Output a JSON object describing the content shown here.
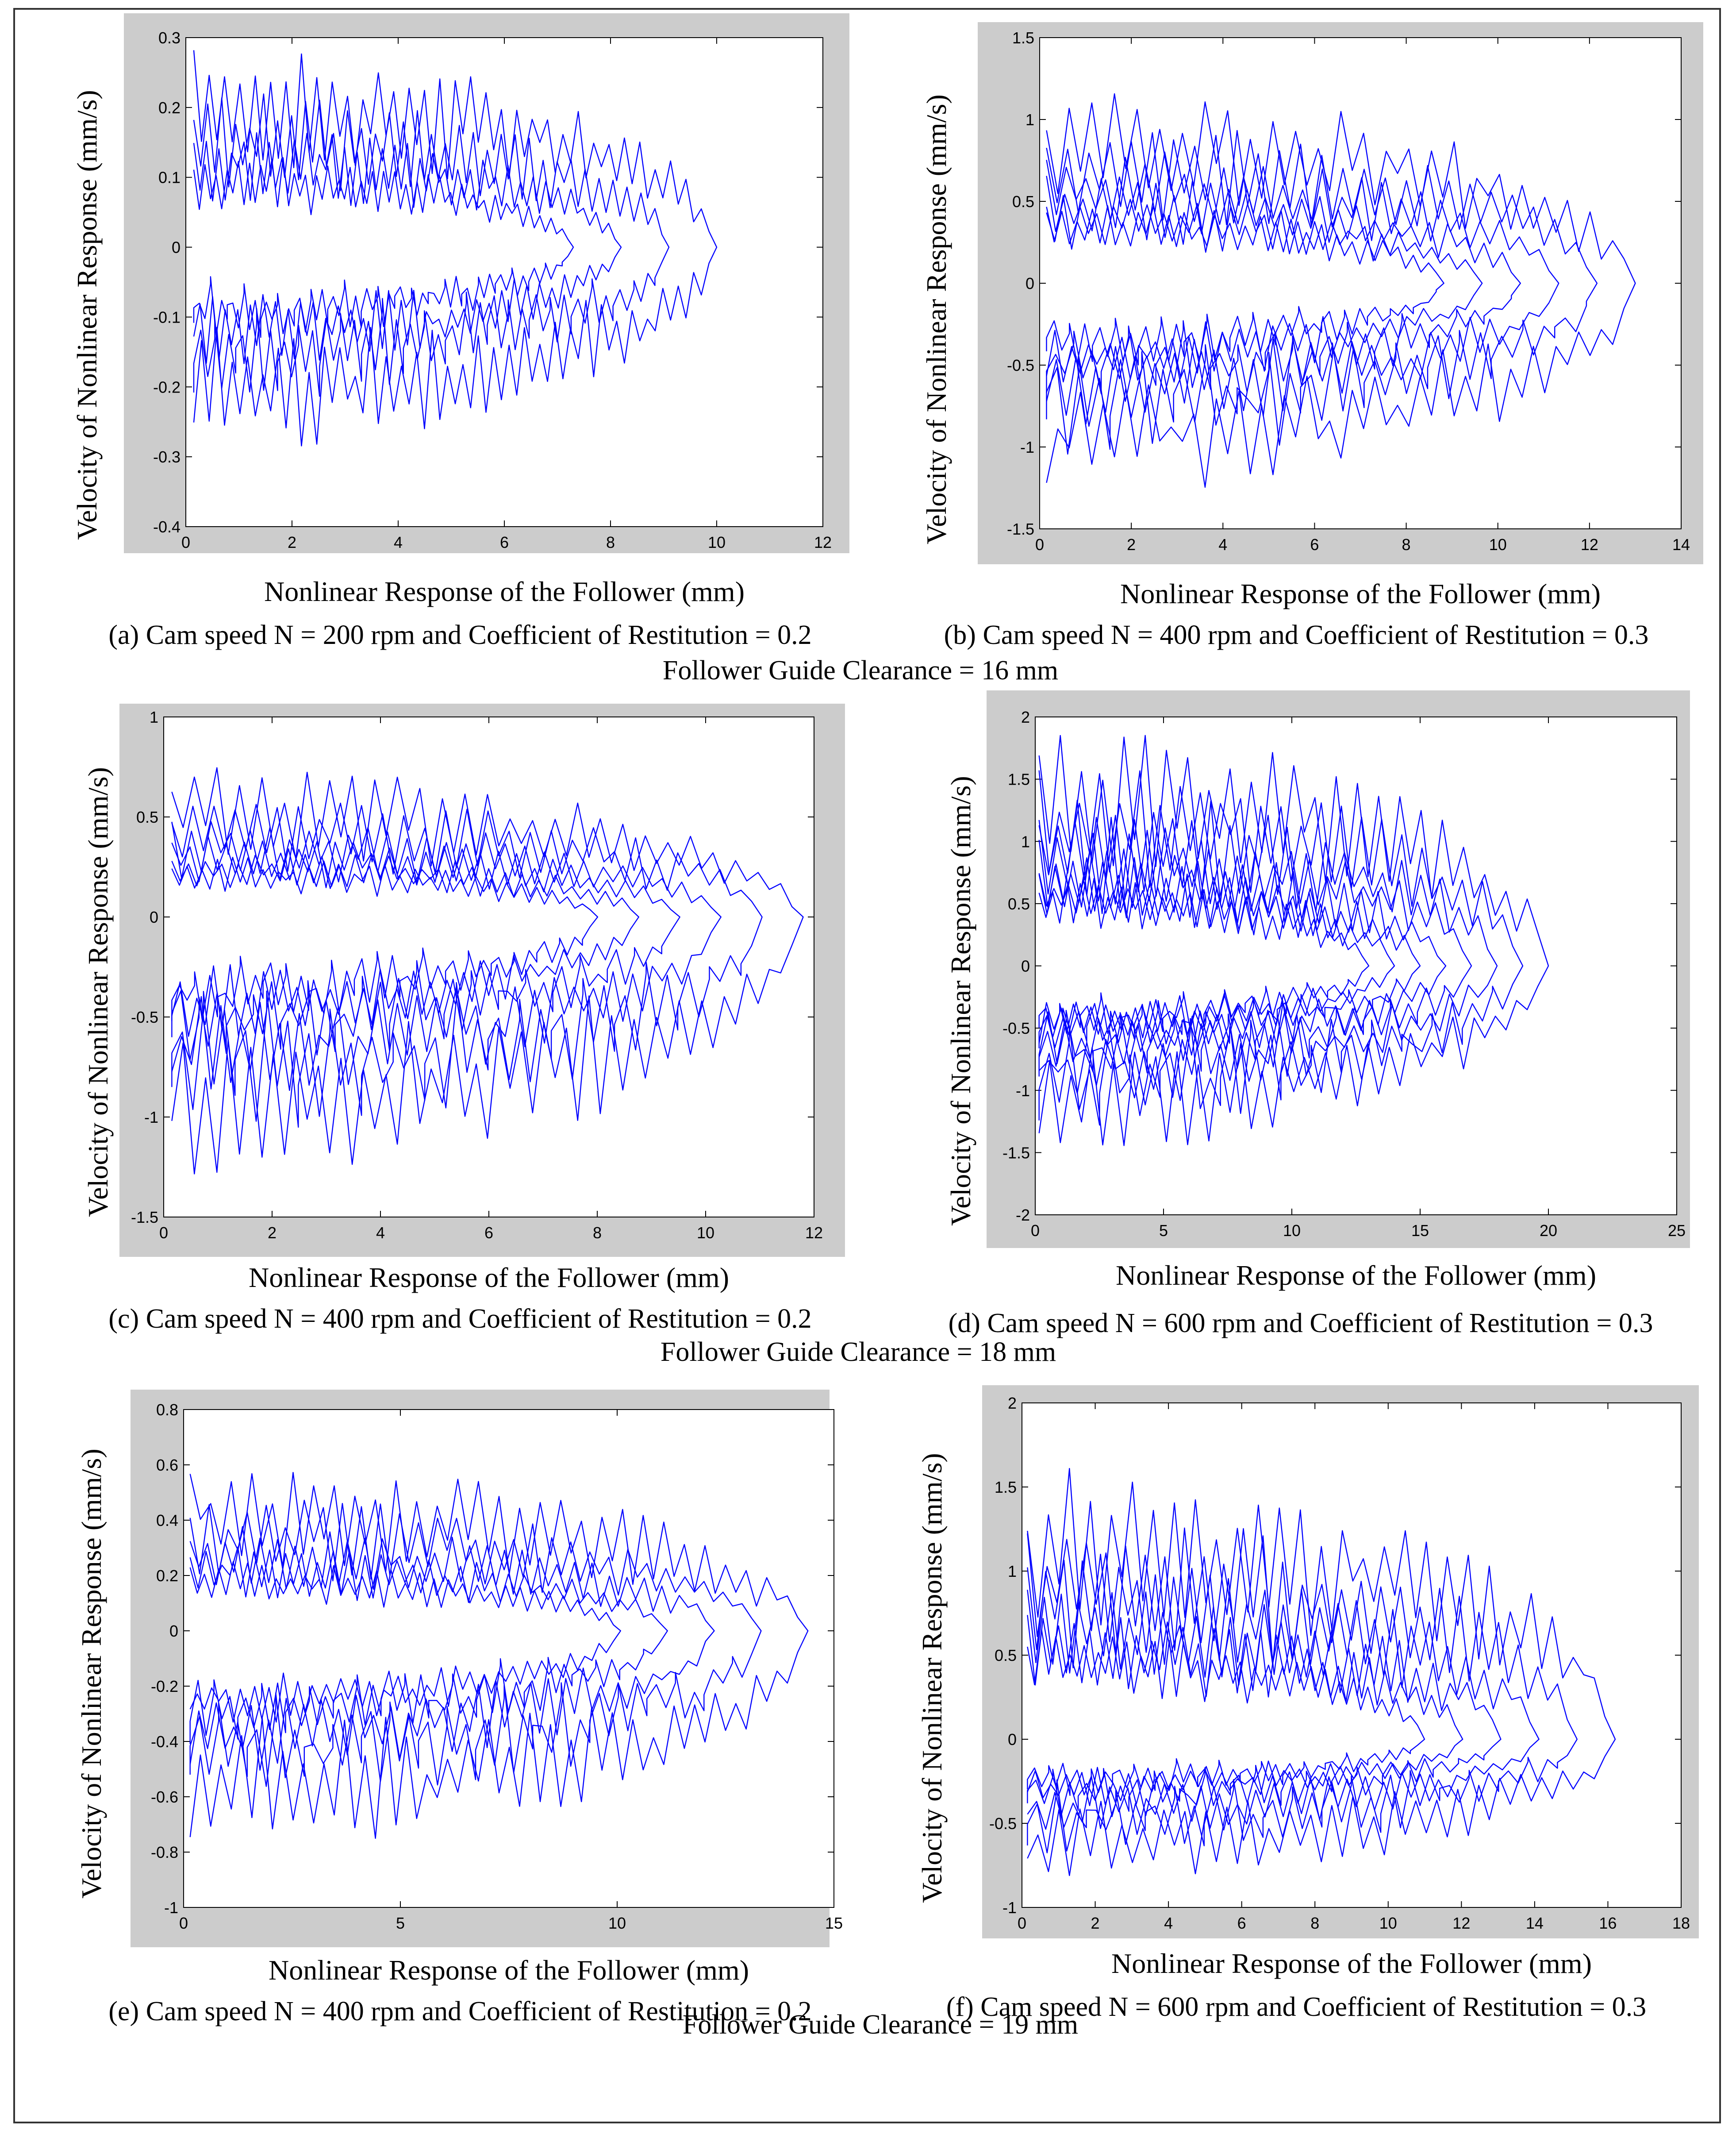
{
  "figure": {
    "clearances": [
      "Follower Guide Clearance = 16 mm",
      "Follower Guide Clearance = 18 mm",
      "Follower Guide Clearance = 19 mm"
    ]
  },
  "chart_data": [
    {
      "id": "a",
      "type": "line",
      "caption": "(a) Cam speed N = 200 rpm and Coefficient of Restitution = 0.2",
      "xlabel": "Nonlinear Response of the Follower (mm)",
      "ylabel": "Velocity of Nonlinear Response (mm/s)",
      "xlim": [
        0,
        12
      ],
      "ylim": [
        -0.4,
        0.3
      ],
      "xticks": [
        "0",
        "2",
        "4",
        "6",
        "8",
        "10",
        "12"
      ],
      "yticks": [
        "-0.4",
        "-0.3",
        "-0.2",
        "-0.1",
        "0",
        "0.1",
        "0.2",
        "0.3"
      ],
      "series": [
        {
          "name": "phase trajectory",
          "color": "#0000ff",
          "x_max": 10,
          "v_max": 0.29,
          "v_min": -0.29,
          "loops": 4,
          "ripples": 34
        }
      ]
    },
    {
      "id": "b",
      "type": "line",
      "caption": "(b) Cam speed N = 400 rpm and Coefficient of Restitution = 0.3",
      "xlabel": "Nonlinear Response of the Follower (mm)",
      "ylabel": "Velocity of Nonlinear Response (mm/s)",
      "xlim": [
        0,
        14
      ],
      "ylim": [
        -1.5,
        1.5
      ],
      "xticks": [
        "0",
        "2",
        "4",
        "6",
        "8",
        "10",
        "12",
        "14"
      ],
      "yticks": [
        "-1.5",
        "-1",
        "-0.5",
        "0",
        "0.5",
        "1",
        "1.5"
      ],
      "series": [
        {
          "name": "phase trajectory",
          "color": "#0000ff",
          "x_max": 13,
          "v_max": 1.2,
          "v_min": -1.3,
          "loops": 6,
          "ripples": 26
        }
      ]
    },
    {
      "id": "c",
      "type": "line",
      "caption": "(c) Cam speed N = 400 rpm and Coefficient of Restitution = 0.2",
      "xlabel": "Nonlinear Response of the Follower (mm)",
      "ylabel": "Velocity of Nonlinear Response (mm/s)",
      "xlim": [
        0,
        12
      ],
      "ylim": [
        -1.5,
        1
      ],
      "xticks": [
        "0",
        "2",
        "4",
        "6",
        "8",
        "10",
        "12"
      ],
      "yticks": [
        "-1.5",
        "-1",
        "-0.5",
        "0",
        "0.5",
        "1"
      ],
      "series": [
        {
          "name": "phase trajectory",
          "color": "#0000ff",
          "x_max": 11.8,
          "v_max": 0.75,
          "v_min": -1.3,
          "loops": 6,
          "ripples": 28
        }
      ]
    },
    {
      "id": "d",
      "type": "line",
      "caption": "(d) Cam speed N = 600 rpm and Coefficient of Restitution = 0.3",
      "xlabel": "Nonlinear Response of the Follower (mm)",
      "ylabel": "Velocity of Nonlinear Response (mm/s)",
      "xlim": [
        0,
        25
      ],
      "ylim": [
        -2,
        2
      ],
      "xticks": [
        "0",
        "5",
        "10",
        "15",
        "20",
        "25"
      ],
      "yticks": [
        "-2",
        "-1.5",
        "-1",
        "-0.5",
        "0",
        "0.5",
        "1",
        "1.5",
        "2"
      ],
      "series": [
        {
          "name": "phase trajectory",
          "color": "#0000ff",
          "x_max": 20,
          "v_max": 1.9,
          "v_min": -1.5,
          "loops": 8,
          "ripples": 24
        }
      ]
    },
    {
      "id": "e",
      "type": "line",
      "caption": "(e) Cam speed N = 400 rpm and Coefficient of Restitution = 0.2",
      "xlabel": "Nonlinear Response of the Follower (mm)",
      "ylabel": "Velocity of Nonlinear Response (mm/s)",
      "xlim": [
        0,
        15
      ],
      "ylim": [
        -1,
        0.8
      ],
      "xticks": [
        "0",
        "5",
        "10",
        "15"
      ],
      "yticks": [
        "-1",
        "-0.8",
        "-0.6",
        "-0.4",
        "-0.2",
        "0",
        "0.2",
        "0.4",
        "0.6",
        "0.8"
      ],
      "series": [
        {
          "name": "phase trajectory",
          "color": "#0000ff",
          "x_max": 14.4,
          "v_max": 0.6,
          "v_min": -0.8,
          "loops": 5,
          "ripples": 30
        }
      ]
    },
    {
      "id": "f",
      "type": "line",
      "caption": "(f) Cam speed N = 600 rpm and Coefficient of Restitution = 0.3",
      "xlabel": "Nonlinear Response of the Follower (mm)",
      "ylabel": "Velocity of Nonlinear Response (mm/s)",
      "xlim": [
        0,
        18
      ],
      "ylim": [
        -1,
        2
      ],
      "xticks": [
        "0",
        "2",
        "4",
        "6",
        "8",
        "10",
        "12",
        "14",
        "16",
        "18"
      ],
      "yticks": [
        "-1",
        "-0.5",
        "0",
        "0.5",
        "1",
        "1.5",
        "2"
      ],
      "series": [
        {
          "name": "phase trajectory",
          "color": "#0000ff",
          "x_max": 16.2,
          "v_max": 1.65,
          "v_min": -0.85,
          "loops": 6,
          "ripples": 28
        }
      ]
    }
  ]
}
